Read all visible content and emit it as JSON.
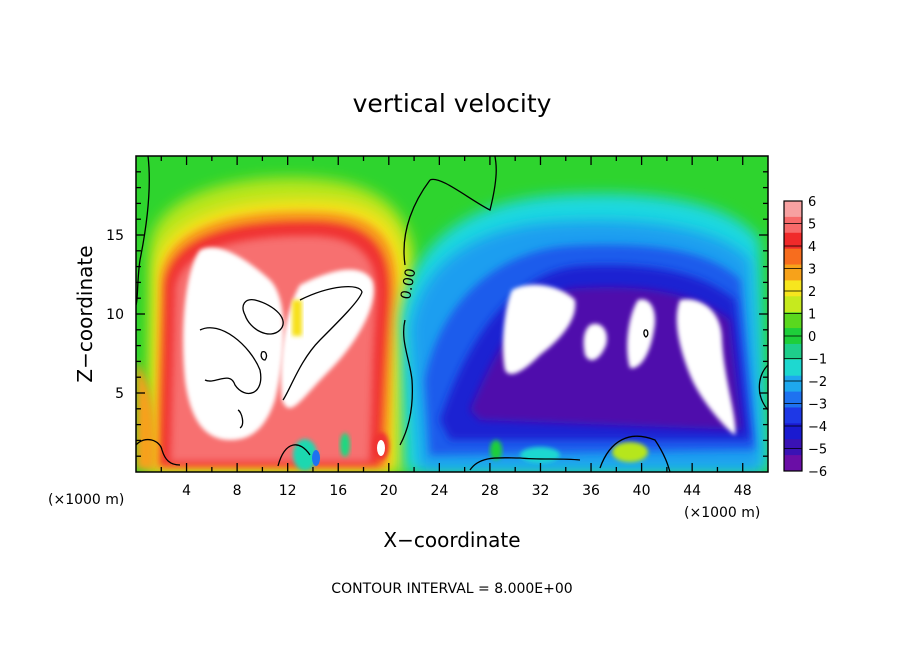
{
  "chart_data": {
    "type": "heatmap",
    "title": "vertical velocity",
    "xlabel": "X−coordinate",
    "ylabel": "Z−coordinate",
    "x_unit_label": "(×1000 m)",
    "y_unit_label": "(×1000 m)",
    "xlim": [
      0,
      50
    ],
    "ylim": [
      0,
      20
    ],
    "x_ticks": [
      4,
      8,
      12,
      16,
      20,
      24,
      28,
      32,
      36,
      40,
      44,
      48
    ],
    "y_ticks": [
      5,
      10,
      15
    ],
    "contour_label": "0.00",
    "footer": "CONTOUR INTERVAL = 8.000E+00",
    "colorbar": {
      "min": -6,
      "max": 6,
      "labels": [
        "6",
        "5",
        "4",
        "3",
        "2",
        "1",
        "0",
        "−1",
        "−2",
        "−3",
        "−4",
        "−5",
        "−6"
      ],
      "colors": [
        "#f7a1a1",
        "#f76a6a",
        "#f02a2a",
        "#f76d1e",
        "#f7a21a",
        "#f7e61e",
        "#c6ea1e",
        "#5ad81e",
        "#1ecf3a",
        "#1ecf8a",
        "#1ed8d0",
        "#1ea8ee",
        "#1e72f0",
        "#1e38e6",
        "#1a1ad0",
        "#3a12b4",
        "#6a0ea6"
      ],
      "saturated_color": "#ffffff"
    },
    "regions": [
      {
        "name": "updraft",
        "x_range": [
          2,
          21
        ],
        "z_range": [
          0.5,
          16.5
        ],
        "peak_sign": "positive"
      },
      {
        "name": "downdraft",
        "x_range": [
          22,
          49
        ],
        "z_range": [
          0.5,
          15.5
        ],
        "peak_sign": "negative"
      }
    ]
  }
}
